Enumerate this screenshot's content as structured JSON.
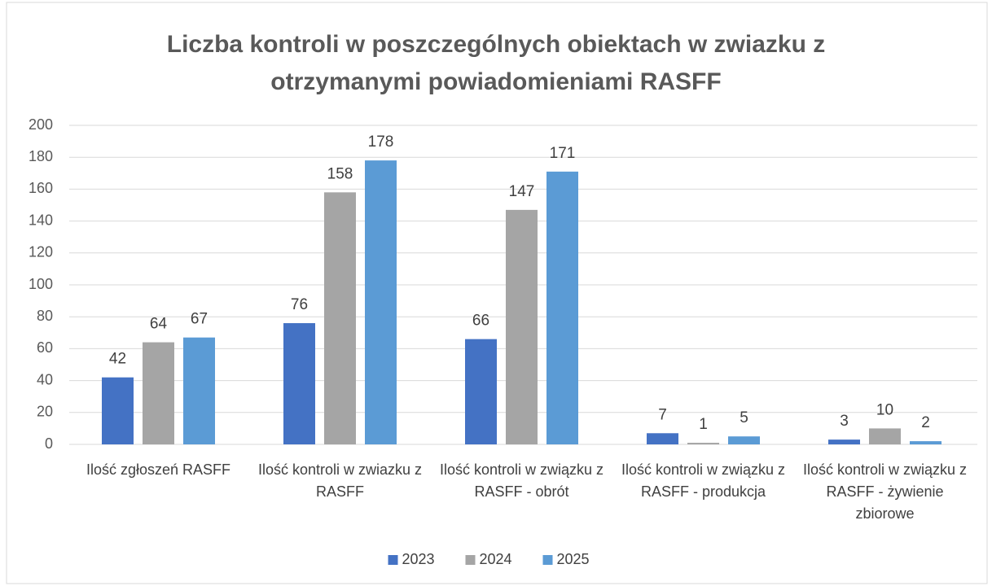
{
  "chart_data": {
    "type": "bar",
    "title": "Liczba kontroli w poszczególnych obiektach w zwiazku z otrzymanymi powiadomieniami RASFF",
    "categories": [
      "Ilość zgłoszeń RASFF",
      "Ilość kontroli w zwiazku z RASFF",
      "Ilość kontroli w związku z RASFF - obrót",
      "Ilość kontroli w związku z RASFF - produkcja",
      "Ilość kontroli w związku z RASFF - żywienie zbiorowe"
    ],
    "series": [
      {
        "name": "2023",
        "color": "#4472c4",
        "values": [
          42,
          76,
          66,
          7,
          3
        ]
      },
      {
        "name": "2024",
        "color": "#a5a5a5",
        "values": [
          64,
          158,
          147,
          1,
          10
        ]
      },
      {
        "name": "2025",
        "color": "#5b9bd5",
        "values": [
          67,
          178,
          171,
          5,
          2
        ]
      }
    ],
    "ylim": [
      0,
      200
    ],
    "yticks": [
      0,
      20,
      40,
      60,
      80,
      100,
      120,
      140,
      160,
      180,
      200
    ],
    "grid": true,
    "legend": "bottom"
  }
}
